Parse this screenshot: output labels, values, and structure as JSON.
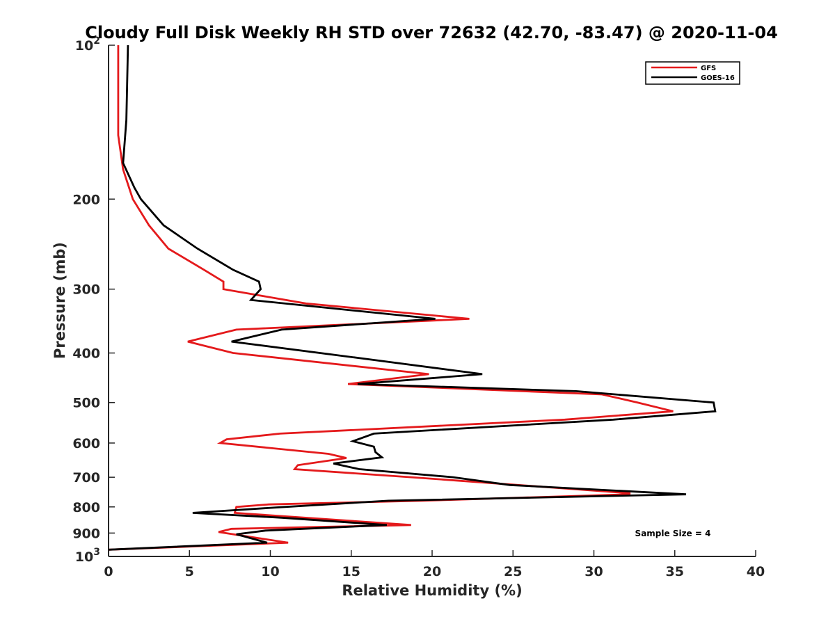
{
  "chart_data": {
    "type": "line",
    "title": "Cloudy Full Disk Weekly RH STD over 72632 (42.70, -83.47) @ 2020-11-04",
    "xlabel": "Relative Humidity (%)",
    "ylabel": "Pressure (mb)",
    "xlim": [
      0,
      40
    ],
    "ylim": [
      100,
      1000
    ],
    "y_scale": "log",
    "y_reversed": true,
    "x_ticks": [
      "0",
      "5",
      "10",
      "15",
      "20",
      "25",
      "30",
      "35",
      "40"
    ],
    "y_ticks": [
      {
        "value": 100,
        "base": "10",
        "exp": "2"
      },
      {
        "value": 200,
        "label": "200"
      },
      {
        "value": 300,
        "label": "300"
      },
      {
        "value": 400,
        "label": "400"
      },
      {
        "value": 500,
        "label": "500"
      },
      {
        "value": 600,
        "label": "600"
      },
      {
        "value": 700,
        "label": "700"
      },
      {
        "value": 800,
        "label": "800"
      },
      {
        "value": 900,
        "label": "900"
      },
      {
        "value": 1000,
        "base": "10",
        "exp": "3"
      }
    ],
    "grid": false,
    "legend": "top-right",
    "annotation": "Sample Size = 4",
    "series": [
      {
        "name": "GFS",
        "color": "#e41a1c",
        "points": [
          [
            0.6,
            100
          ],
          [
            0.6,
            150
          ],
          [
            0.9,
            175
          ],
          [
            1.5,
            200
          ],
          [
            2.5,
            225
          ],
          [
            3.7,
            250
          ],
          [
            5.9,
            275
          ],
          [
            7.1,
            290
          ],
          [
            7.1,
            300
          ],
          [
            12.2,
            320
          ],
          [
            22.3,
            343
          ],
          [
            7.9,
            360
          ],
          [
            4.9,
            380
          ],
          [
            7.7,
            400
          ],
          [
            19.8,
            440
          ],
          [
            14.8,
            460
          ],
          [
            30.5,
            482
          ],
          [
            32.7,
            500
          ],
          [
            34.9,
            520
          ],
          [
            28.2,
            540
          ],
          [
            10.6,
            575
          ],
          [
            7.3,
            590
          ],
          [
            6.9,
            600
          ],
          [
            13.6,
            630
          ],
          [
            14.7,
            642
          ],
          [
            11.7,
            663
          ],
          [
            11.5,
            675
          ],
          [
            18.7,
            700
          ],
          [
            32.2,
            752
          ],
          [
            32.2,
            756
          ],
          [
            19.4,
            778
          ],
          [
            9.9,
            791
          ],
          [
            7.9,
            800
          ],
          [
            7.8,
            822
          ],
          [
            18.7,
            868
          ],
          [
            7.6,
            883
          ],
          [
            6.8,
            896
          ],
          [
            11.1,
            940
          ],
          [
            0.0,
            970
          ]
        ]
      },
      {
        "name": "GOES-16",
        "color": "#000000",
        "points": [
          [
            1.2,
            100
          ],
          [
            1.1,
            140
          ],
          [
            0.9,
            170
          ],
          [
            1.6,
            190
          ],
          [
            2.0,
            200
          ],
          [
            3.4,
            225
          ],
          [
            5.5,
            250
          ],
          [
            7.7,
            275
          ],
          [
            9.3,
            290
          ],
          [
            9.4,
            300
          ],
          [
            8.8,
            315
          ],
          [
            20.2,
            343
          ],
          [
            10.7,
            360
          ],
          [
            7.6,
            380
          ],
          [
            15.7,
            410
          ],
          [
            23.1,
            440
          ],
          [
            15.4,
            460
          ],
          [
            28.9,
            475
          ],
          [
            37.4,
            500
          ],
          [
            37.5,
            520
          ],
          [
            31.2,
            540
          ],
          [
            16.4,
            575
          ],
          [
            15.1,
            595
          ],
          [
            16.4,
            610
          ],
          [
            16.5,
            625
          ],
          [
            16.9,
            640
          ],
          [
            13.9,
            658
          ],
          [
            15.5,
            675
          ],
          [
            21.3,
            700
          ],
          [
            24.8,
            725
          ],
          [
            35.7,
            756
          ],
          [
            17.3,
            778
          ],
          [
            10.9,
            800
          ],
          [
            5.2,
            822
          ],
          [
            10.7,
            840
          ],
          [
            17.2,
            868
          ],
          [
            9.7,
            890
          ],
          [
            7.9,
            905
          ],
          [
            9.8,
            940
          ],
          [
            0.0,
            970
          ]
        ]
      }
    ]
  }
}
